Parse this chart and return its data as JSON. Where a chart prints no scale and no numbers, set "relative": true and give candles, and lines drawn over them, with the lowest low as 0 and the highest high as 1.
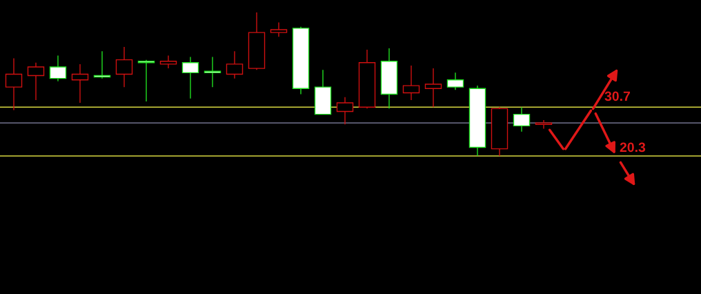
{
  "chart_data": {
    "type": "candlestick",
    "relative": true,
    "categories": [
      null,
      null,
      null,
      null,
      null,
      null,
      null,
      null,
      null,
      null,
      null,
      null,
      null,
      null,
      null,
      null,
      null,
      null,
      null,
      null,
      null,
      null,
      null,
      null,
      null
    ],
    "ohlc": [
      [
        0.48,
        0.68,
        0.32,
        0.57
      ],
      [
        0.56,
        0.65,
        0.39,
        0.62
      ],
      [
        0.62,
        0.7,
        0.52,
        0.54
      ],
      [
        0.53,
        0.64,
        0.37,
        0.57
      ],
      [
        0.56,
        0.73,
        0.54,
        0.55
      ],
      [
        0.57,
        0.76,
        0.48,
        0.67
      ],
      [
        0.66,
        0.67,
        0.38,
        0.65
      ],
      [
        0.64,
        0.7,
        0.61,
        0.66
      ],
      [
        0.65,
        0.69,
        0.4,
        0.58
      ],
      [
        0.59,
        0.69,
        0.48,
        0.58
      ],
      [
        0.57,
        0.73,
        0.54,
        0.64
      ],
      [
        0.61,
        1,
        0.6,
        0.86
      ],
      [
        0.86,
        0.93,
        0.83,
        0.88
      ],
      [
        0.89,
        0.9,
        0.43,
        0.47
      ],
      [
        0.48,
        0.6,
        0.29,
        0.29
      ],
      [
        0.31,
        0.41,
        0.22,
        0.37
      ],
      [
        0.34,
        0.74,
        0.33,
        0.65
      ],
      [
        0.66,
        0.75,
        0.33,
        0.43
      ],
      [
        0.44,
        0.63,
        0.39,
        0.49
      ],
      [
        0.47,
        0.61,
        0.34,
        0.5
      ],
      [
        0.53,
        0.58,
        0.46,
        0.48
      ],
      [
        0.47,
        0.49,
        0,
        0.06
      ],
      [
        0.05,
        0.34,
        0,
        0.33
      ],
      [
        0.29,
        0.34,
        0.17,
        0.21
      ],
      [
        0.22,
        0.25,
        0.19,
        0.23
      ]
    ],
    "colors": [
      "#d01010",
      "#d01010",
      "#20e020",
      "#d01010",
      "#20e020",
      "#d01010",
      "#20e020",
      "#d01010",
      "#20e020",
      "#20e020",
      "#d01010",
      "#d01010",
      "#d01010",
      "#20e020",
      "#20e020",
      "#d01010",
      "#d01010",
      "#20e020",
      "#d01010",
      "#d01010",
      "#20e020",
      "#20e020",
      "#d01010",
      "#20e020",
      "#d01010"
    ],
    "ref_lines": [
      {
        "axis": "y",
        "value": 0.34,
        "color": "#d8d840"
      },
      {
        "axis": "y",
        "value": 0.23,
        "color": "#8888aa"
      },
      {
        "axis": "y",
        "value": 0,
        "color": "#d8d840"
      }
    ],
    "annotations": [
      "30.7",
      "20.3"
    ]
  }
}
